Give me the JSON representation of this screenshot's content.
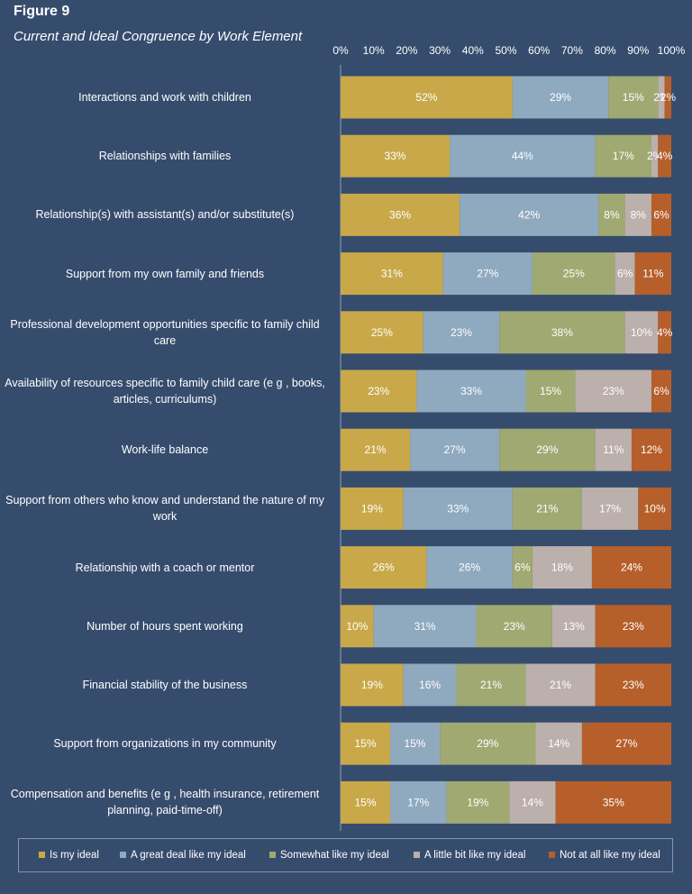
{
  "figure_label": "Figure 9",
  "chart_data": {
    "type": "bar",
    "orientation": "horizontal",
    "stacked": true,
    "title": "Current and Ideal Congruence by Work Element",
    "xlim": [
      0,
      100
    ],
    "x_ticks": [
      "0%",
      "10%",
      "20%",
      "30%",
      "40%",
      "50%",
      "60%",
      "70%",
      "80%",
      "90%",
      "100%"
    ],
    "categories": [
      "Interactions and work with children",
      "Relationships with families",
      "Relationship(s) with assistant(s) and/or substitute(s)",
      "Support from my own family and friends",
      "Professional development opportunities specific to family child care",
      "Availability of resources specific to family child care (e g , books, articles, curriculums)",
      "Work-life balance",
      "Support from others who know and understand the nature of my work",
      "Relationship with a coach or mentor",
      "Number of hours spent working",
      "Financial stability of the business",
      "Support from organizations in my community",
      "Compensation and benefits (e g , health insurance, retirement planning, paid-time-off)"
    ],
    "series": [
      {
        "name": "Is my ideal",
        "color": "#c9a84a",
        "values": [
          52,
          33,
          36,
          31,
          25,
          23,
          21,
          19,
          26,
          10,
          19,
          15,
          15
        ]
      },
      {
        "name": "A great deal like my ideal",
        "color": "#8fa9bf",
        "values": [
          29,
          44,
          42,
          27,
          23,
          33,
          27,
          33,
          26,
          31,
          16,
          15,
          17
        ]
      },
      {
        "name": "Somewhat like my ideal",
        "color": "#9fa971",
        "values": [
          15,
          17,
          8,
          25,
          38,
          15,
          29,
          21,
          6,
          23,
          21,
          29,
          19
        ]
      },
      {
        "name": "A little bit like my ideal",
        "color": "#bbb0ab",
        "values": [
          2,
          2,
          8,
          6,
          10,
          23,
          11,
          17,
          18,
          13,
          21,
          14,
          14
        ]
      },
      {
        "name": "Not at all like my ideal",
        "color": "#b65f2b",
        "values": [
          2,
          4,
          6,
          11,
          4,
          6,
          12,
          10,
          24,
          23,
          23,
          27,
          35
        ]
      }
    ],
    "data_labels": [
      [
        "52%",
        "29%",
        "15%",
        "2%",
        "2%"
      ],
      [
        "33%",
        "44%",
        "17%",
        "2%",
        "4%"
      ],
      [
        "36%",
        "42%",
        "8%",
        "8%",
        "6%"
      ],
      [
        "31%",
        "27%",
        "25%",
        "6%",
        "11%"
      ],
      [
        "25%",
        "23%",
        "38%",
        "10%",
        "4%"
      ],
      [
        "23%",
        "33%",
        "15%",
        "23%",
        "6%"
      ],
      [
        "21%",
        "27%",
        "29%",
        "11%",
        "12%"
      ],
      [
        "19%",
        "33%",
        "21%",
        "17%",
        "10%"
      ],
      [
        "26%",
        "26%",
        "6%",
        "18%",
        "24%"
      ],
      [
        "10%",
        "31%",
        "23%",
        "13%",
        "23%"
      ],
      [
        "19%",
        "16%",
        "21%",
        "21%",
        "23%"
      ],
      [
        "15%",
        "15%",
        "29%",
        "14%",
        "27%"
      ],
      [
        "15%",
        "17%",
        "19%",
        "14%",
        "35%"
      ]
    ],
    "legend_position": "bottom"
  }
}
